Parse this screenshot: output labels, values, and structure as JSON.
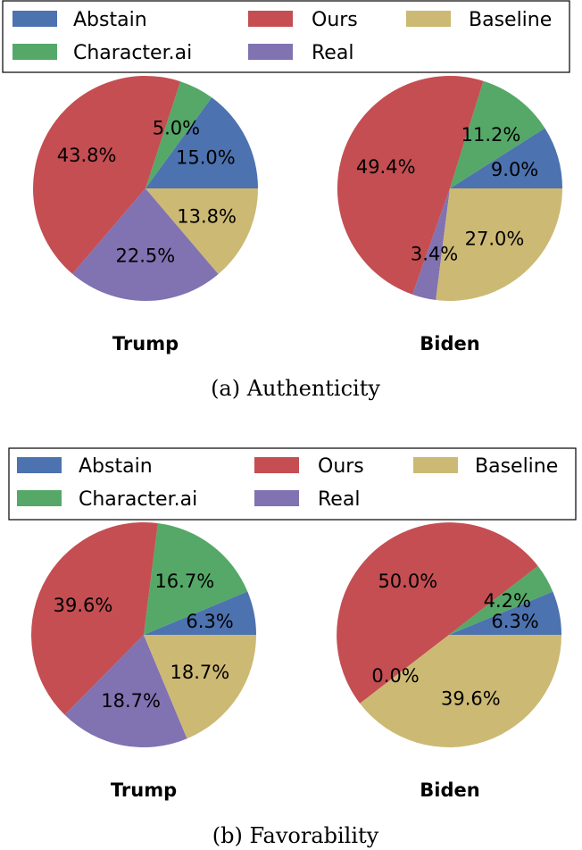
{
  "colors": {
    "Abstain": "#4c72b0",
    "Ours": "#c44e52",
    "Baseline": "#ccb974",
    "Character.ai": "#55a868",
    "Real": "#8172b2"
  },
  "legend": [
    "Abstain",
    "Ours",
    "Baseline",
    "Character.ai",
    "Real"
  ],
  "captions": [
    "(a) Authenticity",
    "(b) Favorability"
  ],
  "chart_data": [
    {
      "type": "pie",
      "title": "Trump",
      "panel": "(a) Authenticity",
      "slices": [
        {
          "label": "Abstain",
          "value": 15.0,
          "text": "15.0%"
        },
        {
          "label": "Character.ai",
          "value": 5.0,
          "text": "5.0%"
        },
        {
          "label": "Ours",
          "value": 43.8,
          "text": "43.8%"
        },
        {
          "label": "Real",
          "value": 22.5,
          "text": "22.5%"
        },
        {
          "label": "Baseline",
          "value": 13.8,
          "text": "13.8%"
        }
      ]
    },
    {
      "type": "pie",
      "title": "Biden",
      "panel": "(a) Authenticity",
      "slices": [
        {
          "label": "Abstain",
          "value": 9.0,
          "text": "9.0%"
        },
        {
          "label": "Character.ai",
          "value": 11.2,
          "text": "11.2%"
        },
        {
          "label": "Ours",
          "value": 49.4,
          "text": "49.4%"
        },
        {
          "label": "Real",
          "value": 3.4,
          "text": "3.4%"
        },
        {
          "label": "Baseline",
          "value": 27.0,
          "text": "27.0%"
        }
      ]
    },
    {
      "type": "pie",
      "title": "Trump",
      "panel": "(b) Favorability",
      "slices": [
        {
          "label": "Abstain",
          "value": 6.3,
          "text": "6.3%"
        },
        {
          "label": "Character.ai",
          "value": 16.7,
          "text": "16.7%"
        },
        {
          "label": "Ours",
          "value": 39.6,
          "text": "39.6%"
        },
        {
          "label": "Real",
          "value": 18.7,
          "text": "18.7%"
        },
        {
          "label": "Baseline",
          "value": 18.7,
          "text": "18.7%"
        }
      ]
    },
    {
      "type": "pie",
      "title": "Biden",
      "panel": "(b) Favorability",
      "slices": [
        {
          "label": "Abstain",
          "value": 6.3,
          "text": "6.3%"
        },
        {
          "label": "Character.ai",
          "value": 4.2,
          "text": "4.2%"
        },
        {
          "label": "Ours",
          "value": 50.0,
          "text": "50.0%"
        },
        {
          "label": "Real",
          "value": 0.0,
          "text": "0.0%"
        },
        {
          "label": "Baseline",
          "value": 39.6,
          "text": "39.6%"
        }
      ]
    }
  ]
}
